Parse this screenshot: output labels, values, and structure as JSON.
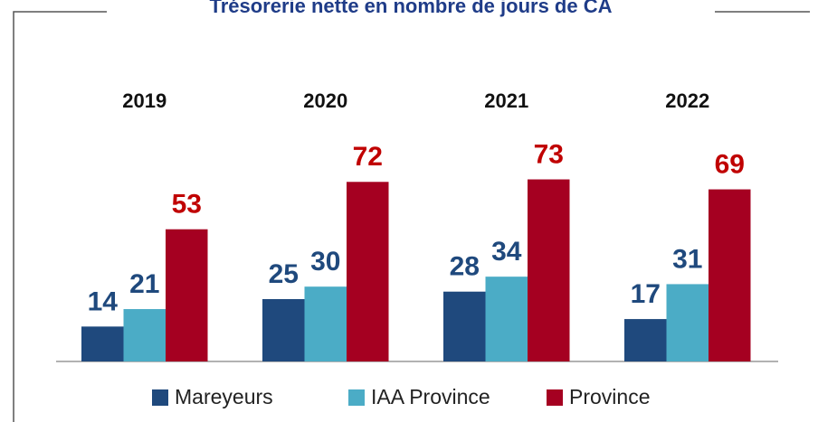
{
  "chart_data": {
    "type": "bar",
    "title": "Trésorerie nette en nombre de jours de CA",
    "categories": [
      "2019",
      "2020",
      "2021",
      "2022"
    ],
    "series": [
      {
        "name": "Mareyeurs",
        "color": "#1f497d",
        "label_color": "#1f497d",
        "values": [
          14,
          25,
          28,
          17
        ]
      },
      {
        "name": "IAA Province",
        "color": "#4bacc6",
        "label_color": "#1f497d",
        "values": [
          21,
          30,
          34,
          31
        ]
      },
      {
        "name": "Province",
        "color": "#a50021",
        "label_color": "#c00000",
        "values": [
          53,
          72,
          73,
          69
        ]
      }
    ],
    "legend": "bottom"
  }
}
